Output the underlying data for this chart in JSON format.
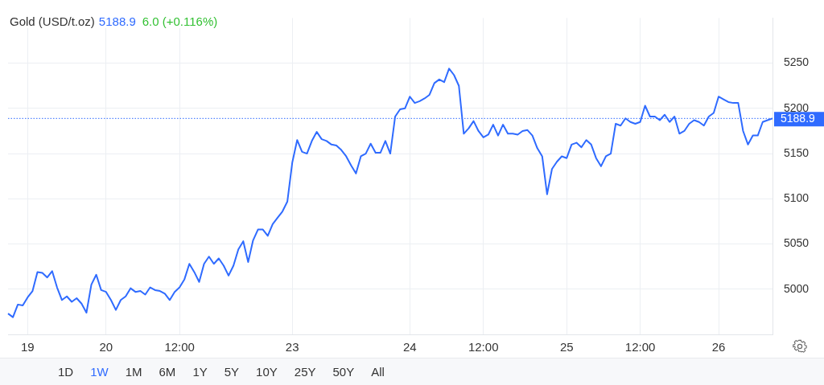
{
  "chart_data": {
    "type": "line",
    "title": "Gold (USD/t.oz)",
    "annotations": [
      "5188.9",
      "6.0 (+0.116%)",
      "1D",
      "1W",
      "1M",
      "6M",
      "1Y",
      "5Y",
      "10Y",
      "25Y",
      "50Y",
      "All"
    ],
    "categories": [
      null,
      null,
      null,
      null,
      "19",
      null,
      null,
      null,
      null,
      null,
      null,
      null,
      null,
      null,
      null,
      null,
      null,
      null,
      null,
      null,
      "20",
      null,
      null,
      null,
      null,
      null,
      null,
      null,
      null,
      null,
      null,
      null,
      null,
      null,
      null,
      "12:00",
      null,
      null,
      null,
      null,
      null,
      null,
      null,
      null,
      null,
      null,
      null,
      null,
      null,
      null,
      null,
      null,
      null,
      null,
      null,
      null,
      null,
      null,
      "23",
      null,
      null,
      null,
      null,
      null,
      null,
      null,
      null,
      null,
      null,
      null,
      null,
      null,
      null,
      null,
      null,
      null,
      null,
      null,
      null,
      null,
      null,
      null,
      "24",
      null,
      null,
      null,
      null,
      null,
      null,
      null,
      null,
      null,
      null,
      null,
      null,
      null,
      null,
      "12:00",
      null,
      null,
      null,
      null,
      null,
      null,
      null,
      null,
      null,
      null,
      null,
      null,
      null,
      null,
      null,
      null,
      "25",
      null,
      null,
      null,
      null,
      null,
      null,
      null,
      null,
      null,
      null,
      null,
      null,
      null,
      null,
      "12:00",
      null,
      null,
      null,
      null,
      null,
      null,
      null,
      null,
      null,
      null,
      null,
      null,
      null,
      null,
      null,
      "26",
      null,
      null,
      null,
      null,
      null,
      null,
      null,
      null,
      null,
      null,
      null
    ],
    "values": [
      4973,
      4969,
      4983,
      4982,
      4991,
      4998,
      5019,
      5018,
      5013,
      5020,
      5002,
      4988,
      4992,
      4986,
      4990,
      4984,
      4974,
      5005,
      5016,
      4999,
      4997,
      4988,
      4977,
      4988,
      4992,
      5001,
      4997,
      4998,
      4994,
      5002,
      4999,
      4998,
      4995,
      4988,
      4997,
      5002,
      5011,
      5028,
      5019,
      5008,
      5028,
      5036,
      5028,
      5034,
      5026,
      5015,
      5026,
      5044,
      5053,
      5030,
      5054,
      5066,
      5066,
      5059,
      5072,
      5079,
      5086,
      5097,
      5140,
      5165,
      5152,
      5150,
      5164,
      5174,
      5166,
      5164,
      5160,
      5159,
      5154,
      5147,
      5137,
      5128,
      5147,
      5150,
      5161,
      5151,
      5151,
      5164,
      5150,
      5191,
      5199,
      5200,
      5213,
      5206,
      5208,
      5211,
      5215,
      5228,
      5232,
      5229,
      5244,
      5237,
      5225,
      5172,
      5178,
      5186,
      5175,
      5168,
      5171,
      5182,
      5170,
      5182,
      5172,
      5172,
      5171,
      5175,
      5176,
      5170,
      5156,
      5147,
      5105,
      5133,
      5141,
      5147,
      5145,
      5160,
      5162,
      5157,
      5165,
      5160,
      5145,
      5136,
      5147,
      5150,
      5183,
      5181,
      5189,
      5185,
      5183,
      5185,
      5203,
      5191,
      5191,
      5187,
      5193,
      5185,
      5191,
      5172,
      5175,
      5183,
      5187,
      5185,
      5181,
      5191,
      5195,
      5213,
      5210,
      5207,
      5206,
      5206,
      5175,
      5160,
      5170,
      5170,
      5185,
      5187,
      5188.9
    ],
    "color": "#2f6bff",
    "ylim": [
      4950,
      5300
    ],
    "yticks": [
      5000,
      5050,
      5100,
      5150,
      5200,
      5250
    ],
    "grid": true,
    "ref_lines": [
      {
        "axis": "y",
        "value": 5188.9,
        "label": "5188.9",
        "color": "#2f6bff",
        "line_style": "dotted"
      }
    ]
  }
}
